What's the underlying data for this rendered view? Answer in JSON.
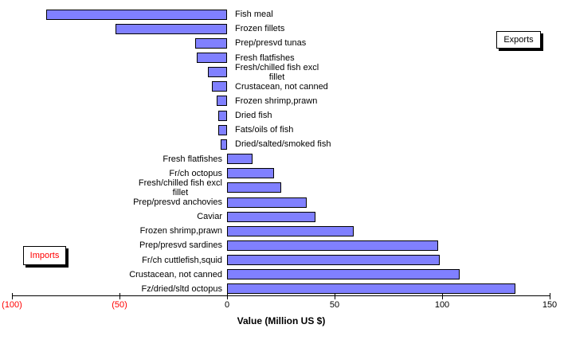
{
  "chart_data": {
    "type": "bar",
    "orientation": "horizontal",
    "title": "",
    "xlabel": "Value (Million US $)",
    "unit": "Million US $",
    "grid": false,
    "bar_color": "#8080ff",
    "bar_border_color": "#000000",
    "x_axis": {
      "min": -100,
      "max": 150,
      "tick_interval": 50,
      "ticks": [
        {
          "value": -100,
          "label": "(100)",
          "color": "#ff0000"
        },
        {
          "value": -50,
          "label": "(50)",
          "color": "#ff0000"
        },
        {
          "value": 0,
          "label": "0",
          "color": "#000000"
        },
        {
          "value": 50,
          "label": "50",
          "color": "#000000"
        },
        {
          "value": 100,
          "label": "100",
          "color": "#000000"
        },
        {
          "value": 150,
          "label": "150",
          "color": "#000000"
        }
      ]
    },
    "legend": {
      "exports_label": "Exports",
      "exports_color": "#000000",
      "imports_label": "Imports",
      "imports_color": "#ff0000"
    },
    "rows": [
      {
        "group": "exports",
        "label_lines": [
          "Fish meal"
        ],
        "value": -84
      },
      {
        "group": "exports",
        "label_lines": [
          "Frozen fillets"
        ],
        "value": -52
      },
      {
        "group": "exports",
        "label_lines": [
          "Prep/presvd tunas"
        ],
        "value": -15
      },
      {
        "group": "exports",
        "label_lines": [
          "Fresh flatfishes"
        ],
        "value": -14
      },
      {
        "group": "exports",
        "label_lines": [
          "Fresh/chilled fish excl",
          "fillet"
        ],
        "value": -9
      },
      {
        "group": "exports",
        "label_lines": [
          "Crustacean, not canned"
        ],
        "value": -7
      },
      {
        "group": "exports",
        "label_lines": [
          "Frozen shrimp,prawn"
        ],
        "value": -5
      },
      {
        "group": "exports",
        "label_lines": [
          "Dried fish"
        ],
        "value": -4
      },
      {
        "group": "exports",
        "label_lines": [
          "Fats/oils of fish"
        ],
        "value": -4
      },
      {
        "group": "exports",
        "label_lines": [
          "Dried/salted/smoked fish"
        ],
        "value": -3
      },
      {
        "group": "imports",
        "label_lines": [
          "Fresh flatfishes"
        ],
        "value": 12
      },
      {
        "group": "imports",
        "label_lines": [
          "Fr/ch octopus"
        ],
        "value": 22
      },
      {
        "group": "imports",
        "label_lines": [
          "Fresh/chilled fish excl",
          "fillet"
        ],
        "value": 25
      },
      {
        "group": "imports",
        "label_lines": [
          "Prep/presvd anchovies"
        ],
        "value": 37
      },
      {
        "group": "imports",
        "label_lines": [
          "Caviar"
        ],
        "value": 41
      },
      {
        "group": "imports",
        "label_lines": [
          "Frozen shrimp,prawn"
        ],
        "value": 59
      },
      {
        "group": "imports",
        "label_lines": [
          "Prep/presvd sardines"
        ],
        "value": 98
      },
      {
        "group": "imports",
        "label_lines": [
          "Fr/ch cuttlefish,squid"
        ],
        "value": 99
      },
      {
        "group": "imports",
        "label_lines": [
          "Crustacean, not canned"
        ],
        "value": 108
      },
      {
        "group": "imports",
        "label_lines": [
          "Fz/dried/sltd octopus"
        ],
        "value": 134
      }
    ]
  }
}
